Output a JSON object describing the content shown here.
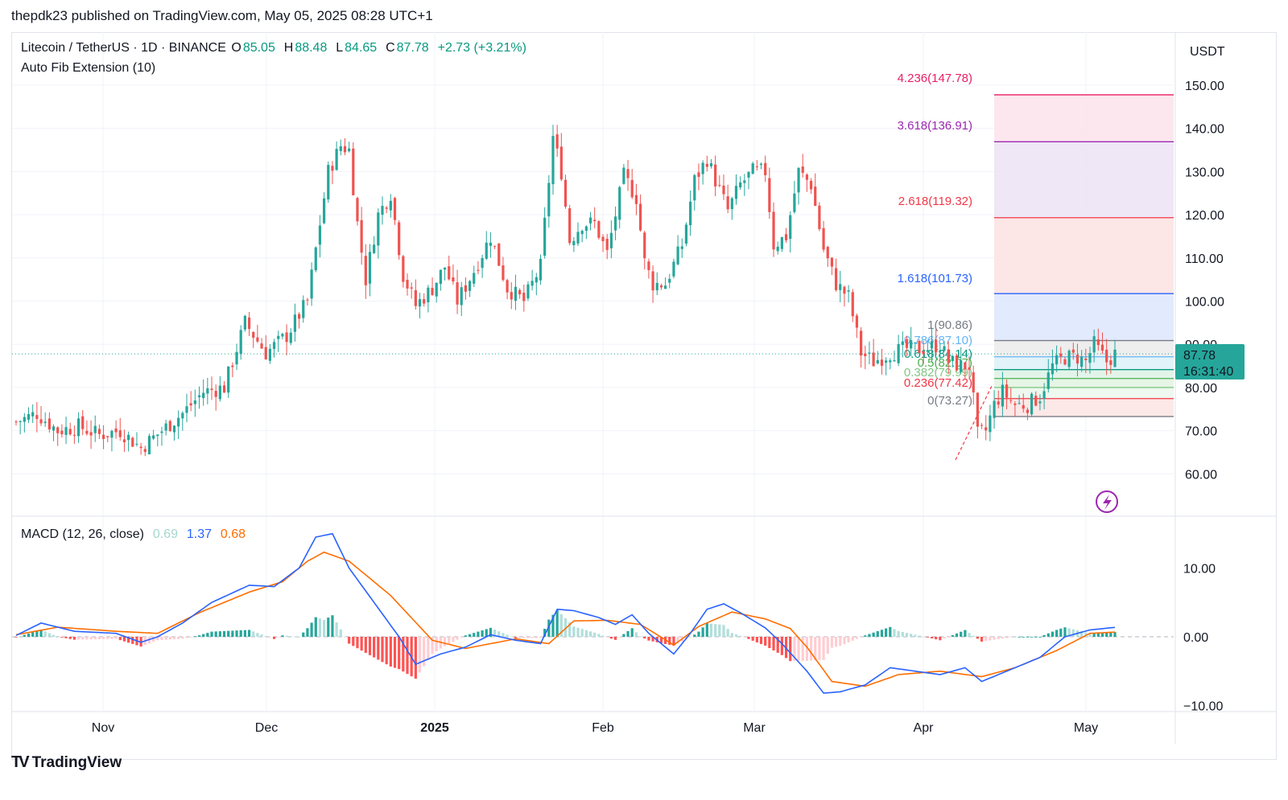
{
  "caption": "thepdk23 published on TradingView.com, May 05, 2025 08:28 UTC+1",
  "legend": {
    "symbol": "Litecoin / TetherUS · 1D · BINANCE",
    "o_label": "O",
    "o": "85.05",
    "h_label": "H",
    "h": "88.48",
    "l_label": "L",
    "l": "84.65",
    "c_label": "C",
    "c": "87.78",
    "change": "+2.73 (+3.21%)",
    "indicator": "Auto Fib Extension (10)"
  },
  "macd_legend": {
    "label": "MACD (12, 26, close)",
    "hist": "0.69",
    "macd": "1.37",
    "signal": "0.68"
  },
  "brand": "TradingView",
  "colors": {
    "up": "#26a69a",
    "down": "#ef5350",
    "grid": "#f0f3fa",
    "macd": "#2962ff",
    "signal": "#ff6d00",
    "price_tag": "#26a69a"
  },
  "price_axis": {
    "currency": "USDT",
    "ticks": [
      "150.00",
      "140.00",
      "130.00",
      "120.00",
      "110.00",
      "100.00",
      "90.00",
      "80.00",
      "70.00",
      "60.00"
    ],
    "current_price": "87.78",
    "countdown": "16:31:40"
  },
  "macd_axis": {
    "ticks": [
      "10.00",
      "0.00",
      "−10.00"
    ]
  },
  "time_axis": {
    "labels": [
      {
        "text": "Nov",
        "bold": false
      },
      {
        "text": "Dec",
        "bold": false
      },
      {
        "text": "2025",
        "bold": true
      },
      {
        "text": "Feb",
        "bold": false
      },
      {
        "text": "Mar",
        "bold": false
      },
      {
        "text": "Apr",
        "bold": false
      },
      {
        "text": "May",
        "bold": false
      }
    ]
  },
  "fib_levels": [
    {
      "label": "4.236(147.78)",
      "value": 147.78,
      "color": "#e91e63"
    },
    {
      "label": "3.618(136.91)",
      "value": 136.91,
      "color": "#9c27b0"
    },
    {
      "label": "2.618(119.32)",
      "value": 119.32,
      "color": "#f23645"
    },
    {
      "label": "1.618(101.73)",
      "value": 101.73,
      "color": "#2962ff"
    },
    {
      "label": "1(90.86)",
      "value": 90.86,
      "color": "#787b86"
    },
    {
      "label": "0.786(87.10)",
      "value": 87.1,
      "color": "#64b5f6"
    },
    {
      "label": "0.618(84.14)",
      "value": 84.14,
      "color": "#089981"
    },
    {
      "label": "0.5(82.07)",
      "value": 82.07,
      "color": "#4caf50"
    },
    {
      "label": "0.382(79.99)",
      "value": 79.99,
      "color": "#81c784"
    },
    {
      "label": "0.236(77.42)",
      "value": 77.42,
      "color": "#f23645"
    },
    {
      "label": "0(73.27)",
      "value": 73.27,
      "color": "#787b86"
    }
  ],
  "chart_data": {
    "type": "candlestick",
    "symbol": "Litecoin / TetherUS",
    "interval": "1D",
    "exchange": "BINANCE",
    "ylim": [
      52,
      157
    ],
    "keypoints_close": [
      [
        0,
        72
      ],
      [
        5,
        74
      ],
      [
        10,
        70
      ],
      [
        15,
        71
      ],
      [
        20,
        69
      ],
      [
        25,
        70
      ],
      [
        30,
        66
      ],
      [
        35,
        70
      ],
      [
        40,
        74
      ],
      [
        45,
        79
      ],
      [
        50,
        80
      ],
      [
        55,
        95
      ],
      [
        60,
        88
      ],
      [
        65,
        92
      ],
      [
        70,
        100
      ],
      [
        72,
        112
      ],
      [
        75,
        130
      ],
      [
        78,
        136
      ],
      [
        80,
        135
      ],
      [
        82,
        118
      ],
      [
        84,
        105
      ],
      [
        87,
        120
      ],
      [
        90,
        125
      ],
      [
        93,
        106
      ],
      [
        96,
        99
      ],
      [
        100,
        103
      ],
      [
        103,
        108
      ],
      [
        106,
        100
      ],
      [
        110,
        107
      ],
      [
        114,
        115
      ],
      [
        118,
        103
      ],
      [
        122,
        100
      ],
      [
        126,
        108
      ],
      [
        129,
        138
      ],
      [
        131,
        130
      ],
      [
        133,
        114
      ],
      [
        136,
        118
      ],
      [
        139,
        118
      ],
      [
        142,
        111
      ],
      [
        146,
        129
      ],
      [
        149,
        124
      ],
      [
        151,
        109
      ],
      [
        153,
        104
      ],
      [
        156,
        104
      ],
      [
        160,
        113
      ],
      [
        163,
        128
      ],
      [
        166,
        133
      ],
      [
        168,
        128
      ],
      [
        171,
        121
      ],
      [
        174,
        127
      ],
      [
        177,
        130
      ],
      [
        180,
        130
      ],
      [
        182,
        113
      ],
      [
        185,
        115
      ],
      [
        188,
        130
      ],
      [
        191,
        127
      ],
      [
        194,
        112
      ],
      [
        197,
        104
      ],
      [
        200,
        101
      ],
      [
        203,
        88
      ],
      [
        206,
        86
      ],
      [
        210,
        88
      ],
      [
        214,
        89
      ],
      [
        218,
        89
      ],
      [
        222,
        90
      ],
      [
        224,
        86
      ],
      [
        227,
        85
      ],
      [
        229,
        85
      ],
      [
        231,
        69
      ],
      [
        233,
        70
      ],
      [
        235,
        76
      ],
      [
        237,
        79
      ],
      [
        240,
        76
      ],
      [
        243,
        76
      ],
      [
        246,
        78
      ],
      [
        249,
        85
      ],
      [
        252,
        87
      ],
      [
        255,
        87
      ],
      [
        257,
        86
      ],
      [
        259,
        90
      ],
      [
        262,
        86
      ],
      [
        264,
        87.78
      ]
    ],
    "total_days": 265,
    "macd": {
      "zero": 0,
      "macd_keypoints": [
        [
          0,
          0.2
        ],
        [
          6,
          2
        ],
        [
          14,
          0.8
        ],
        [
          24,
          0.5
        ],
        [
          30,
          -0.8
        ],
        [
          34,
          0
        ],
        [
          40,
          2
        ],
        [
          47,
          5
        ],
        [
          56,
          7.5
        ],
        [
          62,
          7.3
        ],
        [
          68,
          10
        ],
        [
          72,
          14.5
        ],
        [
          76,
          15
        ],
        [
          80,
          10
        ],
        [
          86,
          5
        ],
        [
          92,
          0
        ],
        [
          96,
          -4
        ],
        [
          102,
          -2.5
        ],
        [
          108,
          -1.5
        ],
        [
          114,
          0.3
        ],
        [
          120,
          -0.5
        ],
        [
          126,
          -1
        ],
        [
          130,
          4
        ],
        [
          134,
          3.8
        ],
        [
          140,
          2.8
        ],
        [
          144,
          1.8
        ],
        [
          148,
          3.2
        ],
        [
          152,
          0.5
        ],
        [
          158,
          -2.5
        ],
        [
          162,
          0.5
        ],
        [
          166,
          4
        ],
        [
          170,
          4.8
        ],
        [
          174,
          3.5
        ],
        [
          180,
          1.3
        ],
        [
          184,
          -1
        ],
        [
          190,
          -5
        ],
        [
          194,
          -8.2
        ],
        [
          198,
          -8
        ],
        [
          204,
          -7
        ],
        [
          210,
          -4.5
        ],
        [
          216,
          -5
        ],
        [
          222,
          -5.5
        ],
        [
          228,
          -4.5
        ],
        [
          232,
          -6.5
        ],
        [
          238,
          -5
        ],
        [
          246,
          -3
        ],
        [
          252,
          0
        ],
        [
          258,
          1
        ],
        [
          264,
          1.37
        ]
      ],
      "signal_keypoints": [
        [
          0,
          0.3
        ],
        [
          10,
          1.4
        ],
        [
          24,
          0.8
        ],
        [
          34,
          0.5
        ],
        [
          44,
          3.5
        ],
        [
          56,
          6.5
        ],
        [
          64,
          8
        ],
        [
          70,
          11
        ],
        [
          74,
          12.3
        ],
        [
          80,
          11
        ],
        [
          90,
          6
        ],
        [
          100,
          -0.5
        ],
        [
          108,
          -1.7
        ],
        [
          120,
          -0.3
        ],
        [
          128,
          -1
        ],
        [
          134,
          2.3
        ],
        [
          142,
          2.4
        ],
        [
          150,
          1.8
        ],
        [
          158,
          -1.2
        ],
        [
          164,
          1.5
        ],
        [
          172,
          3.6
        ],
        [
          180,
          2.6
        ],
        [
          186,
          1.2
        ],
        [
          190,
          -1.5
        ],
        [
          196,
          -6.5
        ],
        [
          204,
          -7.2
        ],
        [
          212,
          -5.5
        ],
        [
          222,
          -5
        ],
        [
          232,
          -5.8
        ],
        [
          240,
          -4.5
        ],
        [
          250,
          -2
        ],
        [
          258,
          0.5
        ],
        [
          264,
          0.68
        ]
      ]
    }
  }
}
